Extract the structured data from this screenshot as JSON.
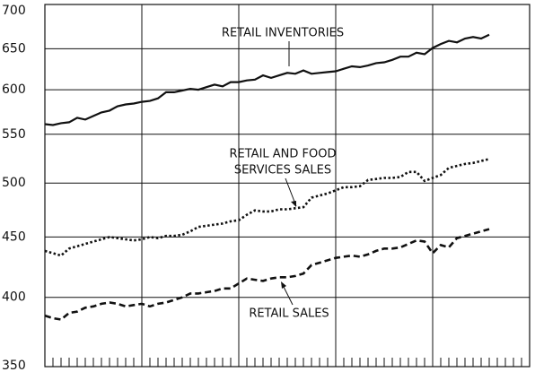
{
  "chart_data": {
    "type": "line",
    "log_y": true,
    "grid": true,
    "x": [
      0,
      1,
      2,
      3,
      4,
      5,
      6,
      7,
      8,
      9,
      10,
      11,
      12,
      13,
      14,
      15,
      16,
      17,
      18,
      19,
      20,
      21,
      22,
      23,
      24,
      25,
      26,
      27,
      28,
      29,
      30,
      31,
      32,
      33,
      34,
      35,
      36,
      37,
      38,
      39,
      40,
      41,
      42,
      43,
      44,
      45,
      46,
      47,
      48,
      49,
      50,
      51,
      52,
      53,
      54,
      55
    ],
    "xlim": [
      0,
      60
    ],
    "xticks": [
      12,
      24,
      36,
      48
    ],
    "xminorticks": [
      1,
      2,
      3,
      4,
      5,
      6,
      7,
      8,
      9,
      10,
      11,
      12,
      13,
      14,
      15,
      16,
      17,
      18,
      19,
      20,
      21,
      22,
      23,
      24,
      25,
      26,
      27,
      28,
      29,
      30,
      31,
      32,
      33,
      34,
      35,
      36,
      37,
      38,
      39,
      40,
      41,
      42,
      43,
      44,
      45,
      46,
      47,
      48,
      49,
      50,
      51,
      52,
      53,
      54,
      55,
      56,
      57,
      58,
      59
    ],
    "ylim": [
      350,
      700
    ],
    "yticks": [
      350,
      400,
      450,
      500,
      550,
      600,
      650,
      700
    ],
    "series": [
      {
        "label": [
          "RETAIL INVENTORIES"
        ],
        "color": "#111111",
        "dash": "solid",
        "values": [
          561,
          560,
          562,
          563,
          568,
          566,
          570,
          574,
          576,
          581,
          583,
          584,
          586,
          587,
          590,
          597,
          597,
          599,
          601,
          600,
          603,
          606,
          604,
          609,
          609,
          611,
          612,
          617,
          614,
          617,
          620,
          619,
          623,
          619,
          620,
          621,
          622,
          625,
          628,
          627,
          629,
          632,
          633,
          636,
          640,
          640,
          645,
          643,
          651,
          656,
          660,
          658,
          663,
          665,
          663,
          668
        ]
      },
      {
        "label": [
          "RETAIL AND FOOD",
          "SERVICES SALES"
        ],
        "color": "#111111",
        "dash": "dotted",
        "values": [
          438,
          436,
          434,
          440,
          442,
          444,
          446,
          448,
          450,
          449,
          448,
          447,
          448,
          450,
          449,
          451,
          451,
          452,
          455,
          459,
          460,
          461,
          462,
          464,
          465,
          470,
          474,
          473,
          473,
          475,
          475,
          476,
          477,
          486,
          488,
          490,
          493,
          496,
          496,
          497,
          503,
          504,
          505,
          505,
          506,
          511,
          511,
          502,
          505,
          508,
          515,
          517,
          519,
          520,
          522,
          524
        ]
      },
      {
        "label": [
          "RETAIL SALES"
        ],
        "color": "#111111",
        "dash": "dashed",
        "values": [
          386,
          384,
          383,
          388,
          389,
          392,
          393,
          395,
          396,
          395,
          393,
          394,
          395,
          393,
          395,
          396,
          398,
          400,
          403,
          403,
          404,
          405,
          407,
          407,
          411,
          415,
          414,
          413,
          415,
          416,
          416,
          417,
          419,
          426,
          428,
          430,
          432,
          433,
          434,
          433,
          435,
          438,
          440,
          440,
          441,
          444,
          447,
          446,
          436,
          443,
          441,
          449,
          451,
          453,
          455,
          457
        ]
      }
    ]
  }
}
